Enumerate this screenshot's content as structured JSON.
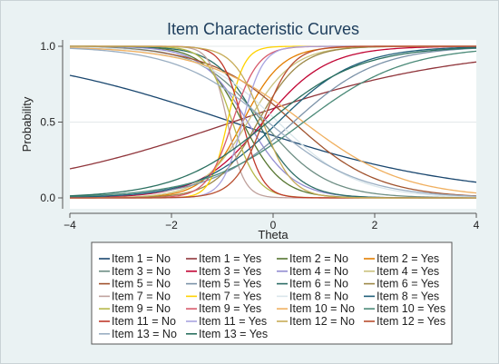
{
  "chart_data": {
    "type": "line",
    "title": "Item Characteristic Curves",
    "xlabel": "Theta",
    "ylabel": "Probability",
    "xlim": [
      -4,
      4
    ],
    "ylim": [
      0,
      1
    ],
    "xticks": [
      -4,
      -2,
      0,
      2,
      4
    ],
    "xtick_labels": [
      "−4",
      "−2",
      "0",
      "2",
      "4"
    ],
    "yticks": [
      0,
      0.5,
      1
    ],
    "ytick_labels": [
      "0.0",
      "0.5",
      "1.0"
    ],
    "grid": true,
    "legend_position": "bottom",
    "items": [
      {
        "a": 0.45,
        "b": -0.8,
        "colors": [
          "#1a476f",
          "#90353b"
        ]
      },
      {
        "a": 2.6,
        "b": -0.6,
        "colors": [
          "#55752f",
          "#e37e00"
        ]
      },
      {
        "a": 1.6,
        "b": -0.2,
        "colors": [
          "#6e8e84",
          "#c10534"
        ]
      },
      {
        "a": 2.2,
        "b": -0.5,
        "colors": [
          "#938dd2",
          "#cac27e"
        ]
      },
      {
        "a": 1.2,
        "b": 0.4,
        "colors": [
          "#a0522d",
          "#7b92a8"
        ]
      },
      {
        "a": 2.4,
        "b": -0.3,
        "colors": [
          "#2d6d66",
          "#9c8847"
        ]
      },
      {
        "a": 6.0,
        "b": -0.9,
        "colors": [
          "#bfa19c",
          "#ffd200"
        ]
      },
      {
        "a": 1.3,
        "b": 0.1,
        "colors": [
          "#d9e6eb",
          "#1f5f79"
        ]
      },
      {
        "a": 4.0,
        "b": -0.8,
        "colors": [
          "#b5b84a",
          "#d75a6b"
        ]
      },
      {
        "a": 1.0,
        "b": 0.6,
        "colors": [
          "#f0b060",
          "#4b8a78"
        ]
      },
      {
        "a": 5.0,
        "b": -0.6,
        "colors": [
          "#c0392b",
          "#a8a4e0"
        ]
      },
      {
        "a": 3.5,
        "b": -0.2,
        "colors": [
          "#c6ab57",
          "#b84d2e"
        ]
      },
      {
        "a": 1.1,
        "b": -0.1,
        "colors": [
          "#9aaec2",
          "#2b7060"
        ]
      }
    ],
    "series_names": [
      "Item 1 = No",
      "Item 1 = Yes",
      "Item 2 = No",
      "Item 2 = Yes",
      "Item 3 = No",
      "Item 3 = Yes",
      "Item 4 = No",
      "Item 4 = Yes",
      "Item 5 = No",
      "Item 5 = Yes",
      "Item 6 = No",
      "Item 6 = Yes",
      "Item 7 = No",
      "Item 7 = Yes",
      "Item 8 = No",
      "Item 8 = Yes",
      "Item 9 = No",
      "Item 9 = Yes",
      "Item 10 = No",
      "Item 10 = Yes",
      "Item 11 = No",
      "Item 11 = Yes",
      "Item 12 = No",
      "Item 12 = Yes",
      "Item 13 = No",
      "Item 13 = Yes"
    ]
  }
}
